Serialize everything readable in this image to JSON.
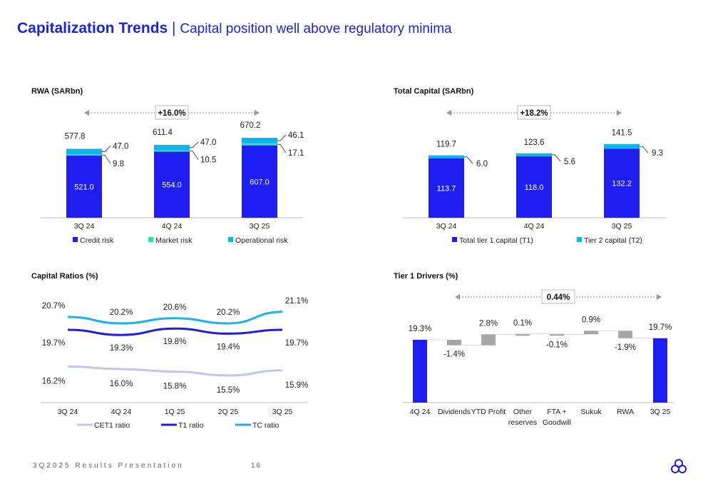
{
  "header": {
    "title": "Capitalization Trends",
    "separator": "|",
    "subtitle": "Capital position well above regulatory minima"
  },
  "footer": {
    "presentation": "3Q2025 Results Presentation",
    "page": "16"
  },
  "colors": {
    "accent": "#1e22d8",
    "credit": "#1e1ef0",
    "market": "#33e0a8",
    "operational": "#10b4ec",
    "cet1": "#c3c5ec",
    "t1": "#1e1ed8",
    "tc": "#1ab2ee",
    "neutral": "#a6a6a6"
  },
  "chart_data": [
    {
      "id": "rwa",
      "type": "bar",
      "stacked": true,
      "title": "RWA (SARbn)",
      "categories": [
        "3Q 24",
        "4Q 24",
        "3Q 25"
      ],
      "series": [
        {
          "name": "Credit risk",
          "values": [
            521.0,
            554.0,
            607.0
          ]
        },
        {
          "name": "Market risk",
          "values": [
            9.8,
            10.5,
            17.1
          ]
        },
        {
          "name": "Operational risk",
          "values": [
            47.0,
            47.0,
            46.1
          ]
        }
      ],
      "totals": [
        577.8,
        611.4,
        670.2
      ],
      "value_labels": {
        "credit": [
          "521.0",
          "554.0",
          "607.0"
        ],
        "market": [
          "9.8",
          "10.5",
          "17.1"
        ],
        "operational": [
          "47.0",
          "47.0",
          "46.1"
        ],
        "totals": [
          "577.8",
          "611.4",
          "670.2"
        ]
      },
      "growth_label": "+16.0%",
      "legend": [
        "Credit risk",
        "Market risk",
        "Operational risk"
      ],
      "ylim": [
        0,
        720
      ]
    },
    {
      "id": "total_capital",
      "type": "bar",
      "stacked": true,
      "title": "Total Capital (SARbn)",
      "categories": [
        "3Q 24",
        "4Q 24",
        "3Q 25"
      ],
      "series": [
        {
          "name": "Total tier 1 capital (T1)",
          "values": [
            113.7,
            118.0,
            132.2
          ]
        },
        {
          "name": "Tier 2 capital (T2)",
          "values": [
            6.0,
            5.6,
            9.3
          ]
        }
      ],
      "totals": [
        119.7,
        123.6,
        141.5
      ],
      "value_labels": {
        "t1": [
          "113.7",
          "118.0",
          "132.2"
        ],
        "t2": [
          "6.0",
          "5.6",
          "9.3"
        ],
        "totals": [
          "119.7",
          "123.6",
          "141.5"
        ]
      },
      "growth_label": "+18.2%",
      "legend": [
        "Total tier 1 capital (T1)",
        "Tier 2 capital (T2)"
      ],
      "ylim": [
        0,
        152
      ]
    },
    {
      "id": "capital_ratios",
      "type": "line",
      "title": "Capital Ratios (%)",
      "categories": [
        "3Q 24",
        "4Q 24",
        "1Q 25",
        "2Q 25",
        "3Q 25"
      ],
      "series": [
        {
          "name": "CET1 ratio",
          "values": [
            16.2,
            16.0,
            15.8,
            15.5,
            15.9
          ],
          "labels": [
            "16.2%",
            "16.0%",
            "15.8%",
            "15.5%",
            "15.9%"
          ]
        },
        {
          "name": "T1 ratio",
          "values": [
            19.7,
            19.3,
            19.8,
            19.4,
            19.7
          ],
          "labels": [
            "19.7%",
            "19.3%",
            "19.8%",
            "19.4%",
            "19.7%"
          ]
        },
        {
          "name": "TC ratio",
          "values": [
            20.7,
            20.2,
            20.6,
            20.2,
            21.1
          ],
          "labels": [
            "20.7%",
            "20.2%",
            "20.6%",
            "20.2%",
            "21.1%"
          ]
        }
      ],
      "legend": [
        "CET1 ratio",
        "T1 ratio",
        "TC ratio"
      ]
    },
    {
      "id": "tier1_drivers",
      "type": "bar",
      "subtype": "waterfall",
      "title": "Tier 1 Drivers (%)",
      "categories": [
        "4Q 24",
        "Dividends",
        "YTD Profit",
        "Other reserves",
        "FTA + Goodwill",
        "Sukuk",
        "RWA",
        "3Q 25"
      ],
      "category_lines": [
        [
          "4Q 24"
        ],
        [
          "Dividends"
        ],
        [
          "YTD Profit"
        ],
        [
          "Other",
          "reserves"
        ],
        [
          "FTA +",
          "Goodwill"
        ],
        [
          "Sukuk"
        ],
        [
          "RWA"
        ],
        [
          "3Q 25"
        ]
      ],
      "values": [
        19.3,
        -1.4,
        2.8,
        0.1,
        -0.1,
        0.9,
        -1.9,
        19.7
      ],
      "labels": [
        "19.3%",
        "-1.4%",
        "2.8%",
        "0.1%",
        "-0.1%",
        "0.9%",
        "-1.9%",
        "19.7%"
      ],
      "is_total": [
        true,
        false,
        false,
        false,
        false,
        false,
        false,
        true
      ],
      "growth_label": "0.44%"
    }
  ]
}
